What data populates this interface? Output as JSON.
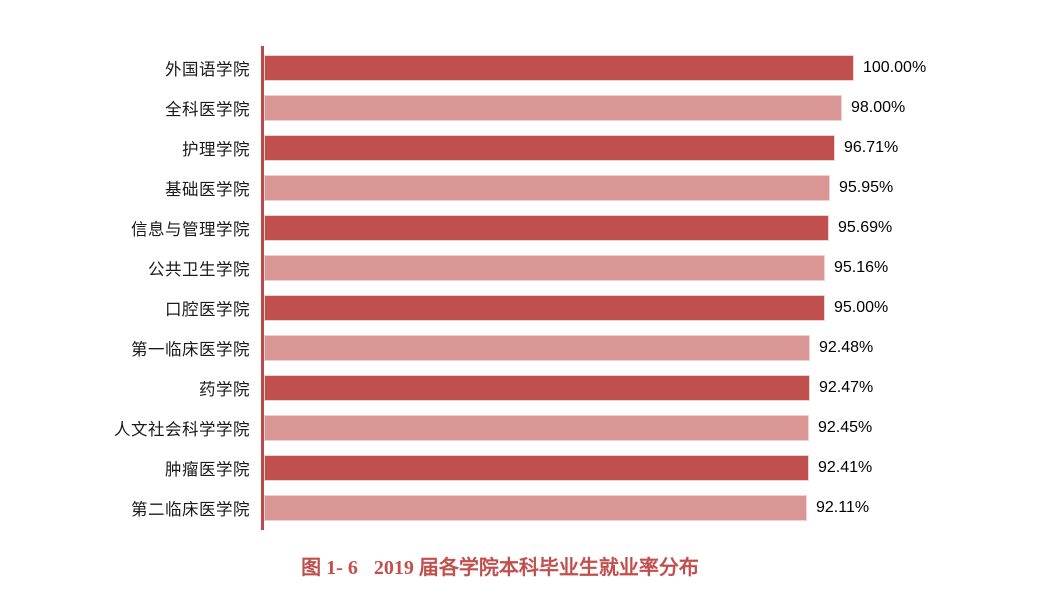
{
  "chart_data": {
    "type": "bar",
    "orientation": "horizontal",
    "title": "图 1- 6　2019 届各学院本科毕业生就业率分布",
    "categories": [
      "外国语学院",
      "全科医学院",
      "护理学院",
      "基础医学院",
      "信息与管理学院",
      "公共卫生学院",
      "口腔医学院",
      "第一临床医学院",
      "药学院",
      "人文社会科学学院",
      "肿瘤医学院",
      "第二临床医学院"
    ],
    "values": [
      100.0,
      98.0,
      96.71,
      95.95,
      95.69,
      95.16,
      95.0,
      92.48,
      92.47,
      92.45,
      92.41,
      92.11
    ],
    "value_labels": [
      "100.00%",
      "98.00%",
      "96.71%",
      "95.95%",
      "95.69%",
      "95.16%",
      "95.00%",
      "92.48%",
      "92.47%",
      "92.45%",
      "92.41%",
      "92.11%"
    ],
    "xlim": [
      0,
      100
    ],
    "grid": false,
    "legend": false,
    "bar_colors_alternating": [
      "#C0504D",
      "#D99694"
    ],
    "bar_border_color": "#EED2D1",
    "axis_line_color": "#B94A48",
    "category_label_color": "#1A1A1A",
    "value_label_color": "#000000"
  },
  "caption": {
    "figure_label": "图 1- 6",
    "title": "2019 届各学院本科毕业生就业率分布",
    "color": "#C0504D"
  }
}
